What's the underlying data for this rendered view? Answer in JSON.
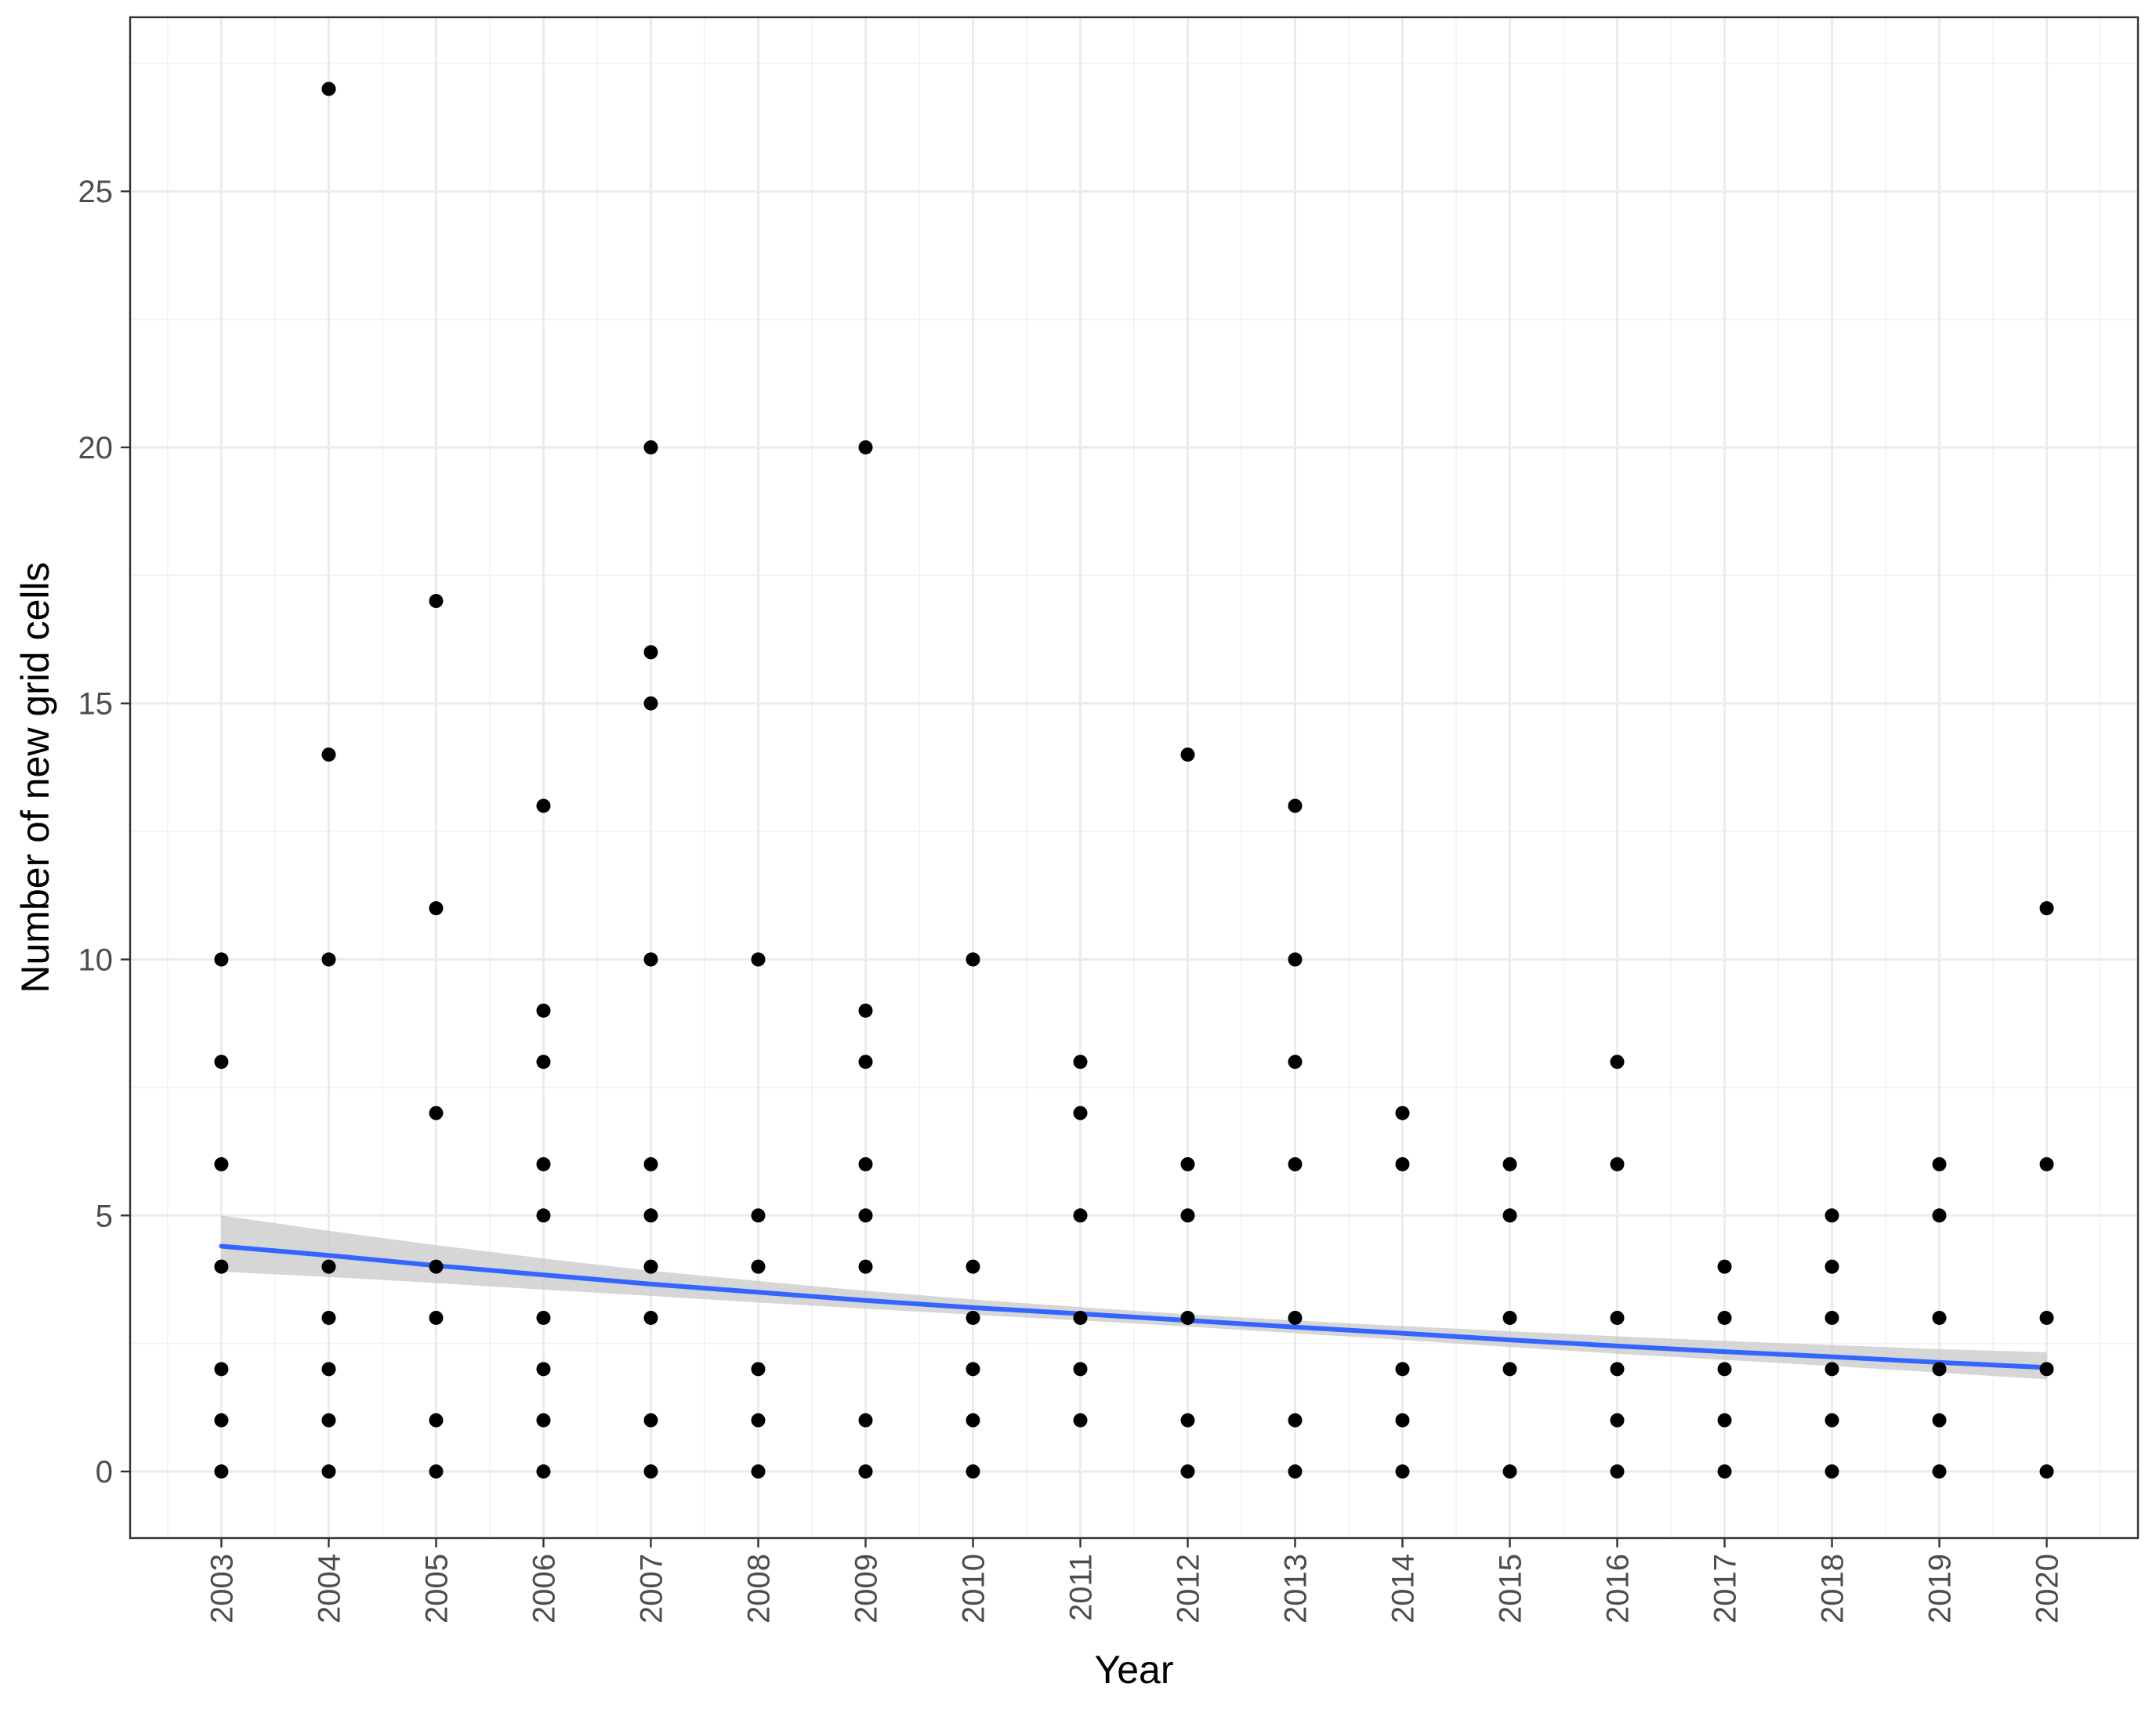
{
  "chart_data": {
    "type": "scatter",
    "title": "",
    "xlabel": "Year",
    "ylabel": "Number of new grid cells",
    "x_ticks": [
      "2003",
      "2004",
      "2005",
      "2006",
      "2007",
      "2008",
      "2009",
      "2010",
      "2011",
      "2012",
      "2013",
      "2014",
      "2015",
      "2016",
      "2017",
      "2018",
      "2019",
      "2020"
    ],
    "y_ticks": [
      "0",
      "5",
      "10",
      "15",
      "20",
      "25"
    ],
    "xlim": [
      2002.15,
      2020.85
    ],
    "ylim": [
      -1.3,
      28.4
    ],
    "grid": true,
    "legend": "none",
    "series": [
      {
        "x": [
          2003,
          2003,
          2003,
          2003,
          2003,
          2003,
          2003,
          2004,
          2004,
          2004,
          2004,
          2004,
          2004,
          2004,
          2004,
          2005,
          2005,
          2005,
          2005,
          2005,
          2005,
          2005,
          2006,
          2006,
          2006,
          2006,
          2006,
          2006,
          2006,
          2006,
          2006,
          2007,
          2007,
          2007,
          2007,
          2007,
          2007,
          2007,
          2007,
          2007,
          2007,
          2008,
          2008,
          2008,
          2008,
          2008,
          2008,
          2009,
          2009,
          2009,
          2009,
          2009,
          2009,
          2009,
          2009,
          2010,
          2010,
          2010,
          2010,
          2010,
          2010,
          2011,
          2011,
          2011,
          2011,
          2011,
          2011,
          2012,
          2012,
          2012,
          2012,
          2012,
          2012,
          2013,
          2013,
          2013,
          2013,
          2013,
          2013,
          2013,
          2014,
          2014,
          2014,
          2014,
          2014,
          2015,
          2015,
          2015,
          2015,
          2015,
          2016,
          2016,
          2016,
          2016,
          2016,
          2016,
          2017,
          2017,
          2017,
          2017,
          2017,
          2018,
          2018,
          2018,
          2018,
          2018,
          2018,
          2019,
          2019,
          2019,
          2019,
          2019,
          2019,
          2020,
          2020,
          2020,
          2020,
          2020
        ],
        "y": [
          0,
          1,
          2,
          4,
          6,
          8,
          10,
          0,
          1,
          2,
          3,
          4,
          10,
          14,
          27,
          0,
          1,
          3,
          4,
          7,
          11,
          17,
          0,
          1,
          2,
          3,
          5,
          6,
          8,
          9,
          13,
          0,
          1,
          3,
          4,
          5,
          6,
          10,
          15,
          16,
          20,
          0,
          1,
          2,
          4,
          5,
          10,
          0,
          1,
          4,
          5,
          6,
          8,
          9,
          20,
          0,
          1,
          2,
          3,
          4,
          10,
          1,
          2,
          3,
          5,
          7,
          8,
          0,
          1,
          3,
          5,
          6,
          14,
          0,
          1,
          3,
          6,
          8,
          10,
          13,
          0,
          1,
          2,
          6,
          7,
          0,
          2,
          3,
          5,
          6,
          0,
          1,
          2,
          3,
          6,
          8,
          0,
          1,
          2,
          3,
          4,
          0,
          1,
          2,
          3,
          4,
          5,
          0,
          1,
          2,
          3,
          5,
          6,
          0,
          2,
          3,
          6,
          11
        ],
        "color": "#000000"
      }
    ],
    "trend": {
      "method": "smooth",
      "color": "#3366ff",
      "band_color": "#c8c8c8",
      "x": [
        2003,
        2004,
        2005,
        2006,
        2007,
        2008,
        2009,
        2010,
        2011,
        2012,
        2013,
        2014,
        2015,
        2016,
        2017,
        2018,
        2019,
        2020
      ],
      "y": [
        4.4,
        4.22,
        4.02,
        3.84,
        3.66,
        3.5,
        3.34,
        3.2,
        3.08,
        2.95,
        2.82,
        2.7,
        2.57,
        2.45,
        2.34,
        2.24,
        2.13,
        2.03
      ],
      "lower": [
        3.9,
        3.8,
        3.68,
        3.55,
        3.43,
        3.3,
        3.18,
        3.06,
        2.95,
        2.83,
        2.7,
        2.57,
        2.43,
        2.3,
        2.18,
        2.06,
        1.93,
        1.8
      ],
      "upper": [
        5.0,
        4.7,
        4.42,
        4.16,
        3.92,
        3.72,
        3.53,
        3.36,
        3.21,
        3.07,
        2.95,
        2.84,
        2.74,
        2.64,
        2.55,
        2.47,
        2.39,
        2.33
      ]
    }
  }
}
